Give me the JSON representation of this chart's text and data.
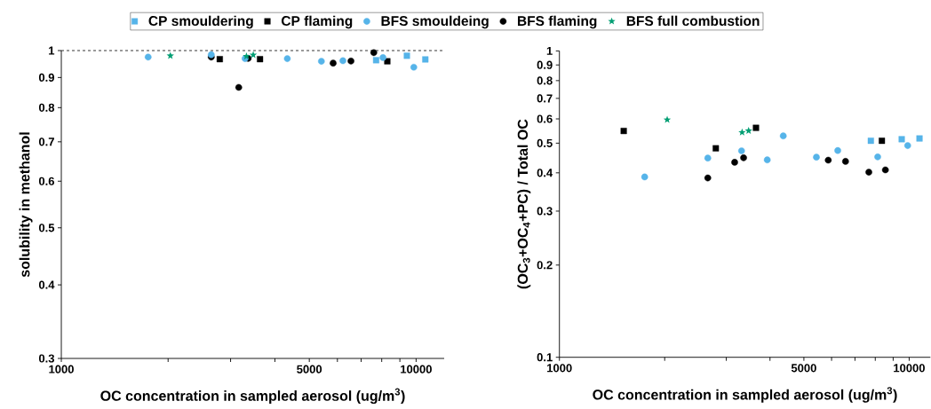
{
  "chart_data": [
    {
      "type": "scatter",
      "xlabel": "OC concentration in sampled aerosol (ug/m$^{3}$)",
      "ylabel": "solubility in methanol",
      "log": "xy",
      "legend": "top",
      "xlim": [
        1000,
        12000
      ],
      "xticks": [
        1000,
        {
          "value": 2000,
          "label": null
        },
        {
          "value": 3000,
          "label": null
        },
        {
          "value": 4000,
          "label": null
        },
        5000,
        {
          "value": 6000,
          "label": null
        },
        {
          "value": 7000,
          "label": null
        },
        {
          "value": 8000,
          "label": null
        },
        {
          "value": 9000,
          "label": null
        },
        10000
      ],
      "ylim": [
        0.3,
        1
      ],
      "yticks": [
        0.3,
        0.4,
        0.5,
        0.6,
        0.7,
        0.8,
        0.9,
        1
      ],
      "ref_lines": [
        {
          "axis": "y",
          "value": 1,
          "line_style": "dashed"
        }
      ],
      "series": [
        {
          "name": "CP smouldering",
          "color": "#56b4e9",
          "marker": "square",
          "x": [
            7716,
            9419,
            10617
          ],
          "values": [
            0.963,
            0.98,
            0.966
          ]
        },
        {
          "name": "CP flaming",
          "color": "#000000",
          "marker": "square",
          "x": [
            2797,
            3631,
            8296
          ],
          "values": [
            0.967,
            0.967,
            0.959
          ]
        },
        {
          "name": "BFS smouldeing",
          "color": "#56b4e9",
          "marker": "circle",
          "x": [
            1757,
            2646,
            3296,
            4335,
            5408,
            6219,
            8066,
            9851
          ],
          "values": [
            0.975,
            0.984,
            0.969,
            0.969,
            0.959,
            0.961,
            0.973,
            0.937
          ]
        },
        {
          "name": "BFS flaming",
          "color": "#000000",
          "marker": "circle",
          "x": [
            2646,
            3163,
            3363,
            5837,
            6553,
            7599
          ],
          "values": [
            0.975,
            0.866,
            0.97,
            0.952,
            0.96,
            0.992
          ]
        },
        {
          "name": "BFS full combustion",
          "color": "#009e73",
          "marker": "star",
          "x": [
            2029,
            3325,
            3475
          ],
          "values": [
            0.98,
            0.978,
            0.983
          ]
        }
      ]
    },
    {
      "type": "scatter",
      "xlabel": "OC concentration in sampled aerosol (ug/m$^{3}$)",
      "ylabel": "(OC$_{3}$+OC$_{4}$+PC) / Total OC",
      "log": "xy",
      "xlim": [
        1000,
        11500
      ],
      "xticks": [
        1000,
        {
          "value": 2000,
          "label": null
        },
        {
          "value": 3000,
          "label": null
        },
        {
          "value": 4000,
          "label": null
        },
        5000,
        {
          "value": 6000,
          "label": null
        },
        {
          "value": 7000,
          "label": null
        },
        {
          "value": 8000,
          "label": null
        },
        {
          "value": 9000,
          "label": null
        },
        10000
      ],
      "ylim": [
        0.1,
        1
      ],
      "yticks": [
        0.1,
        0.2,
        0.3,
        0.4,
        0.5,
        0.6,
        0.7,
        0.8,
        0.9,
        1
      ],
      "series": [
        {
          "color": "#56b4e9",
          "marker": "square",
          "x": [
            7771,
            9521,
            10703
          ],
          "values": [
            0.509,
            0.515,
            0.518
          ]
        },
        {
          "color": "#000000",
          "marker": "square",
          "x": [
            1527,
            2800,
            3648,
            8356
          ],
          "values": [
            0.548,
            0.481,
            0.561,
            0.509
          ]
        },
        {
          "color": "#56b4e9",
          "marker": "circle",
          "x": [
            1753,
            2656,
            3317,
            3929,
            4365,
            5430,
            6249,
            8128,
            9901
          ],
          "values": [
            0.388,
            0.447,
            0.472,
            0.441,
            0.528,
            0.45,
            0.473,
            0.451,
            0.491
          ]
        },
        {
          "color": "#000000",
          "marker": "circle",
          "x": [
            2656,
            3170,
            3362,
            5870,
            6577,
            7669,
            8551
          ],
          "values": [
            0.385,
            0.433,
            0.448,
            0.44,
            0.436,
            0.402,
            0.409
          ]
        },
        {
          "color": "#009e73",
          "marker": "star",
          "x": [
            2033,
            3329,
            3475
          ],
          "values": [
            0.596,
            0.542,
            0.549
          ]
        }
      ]
    }
  ]
}
